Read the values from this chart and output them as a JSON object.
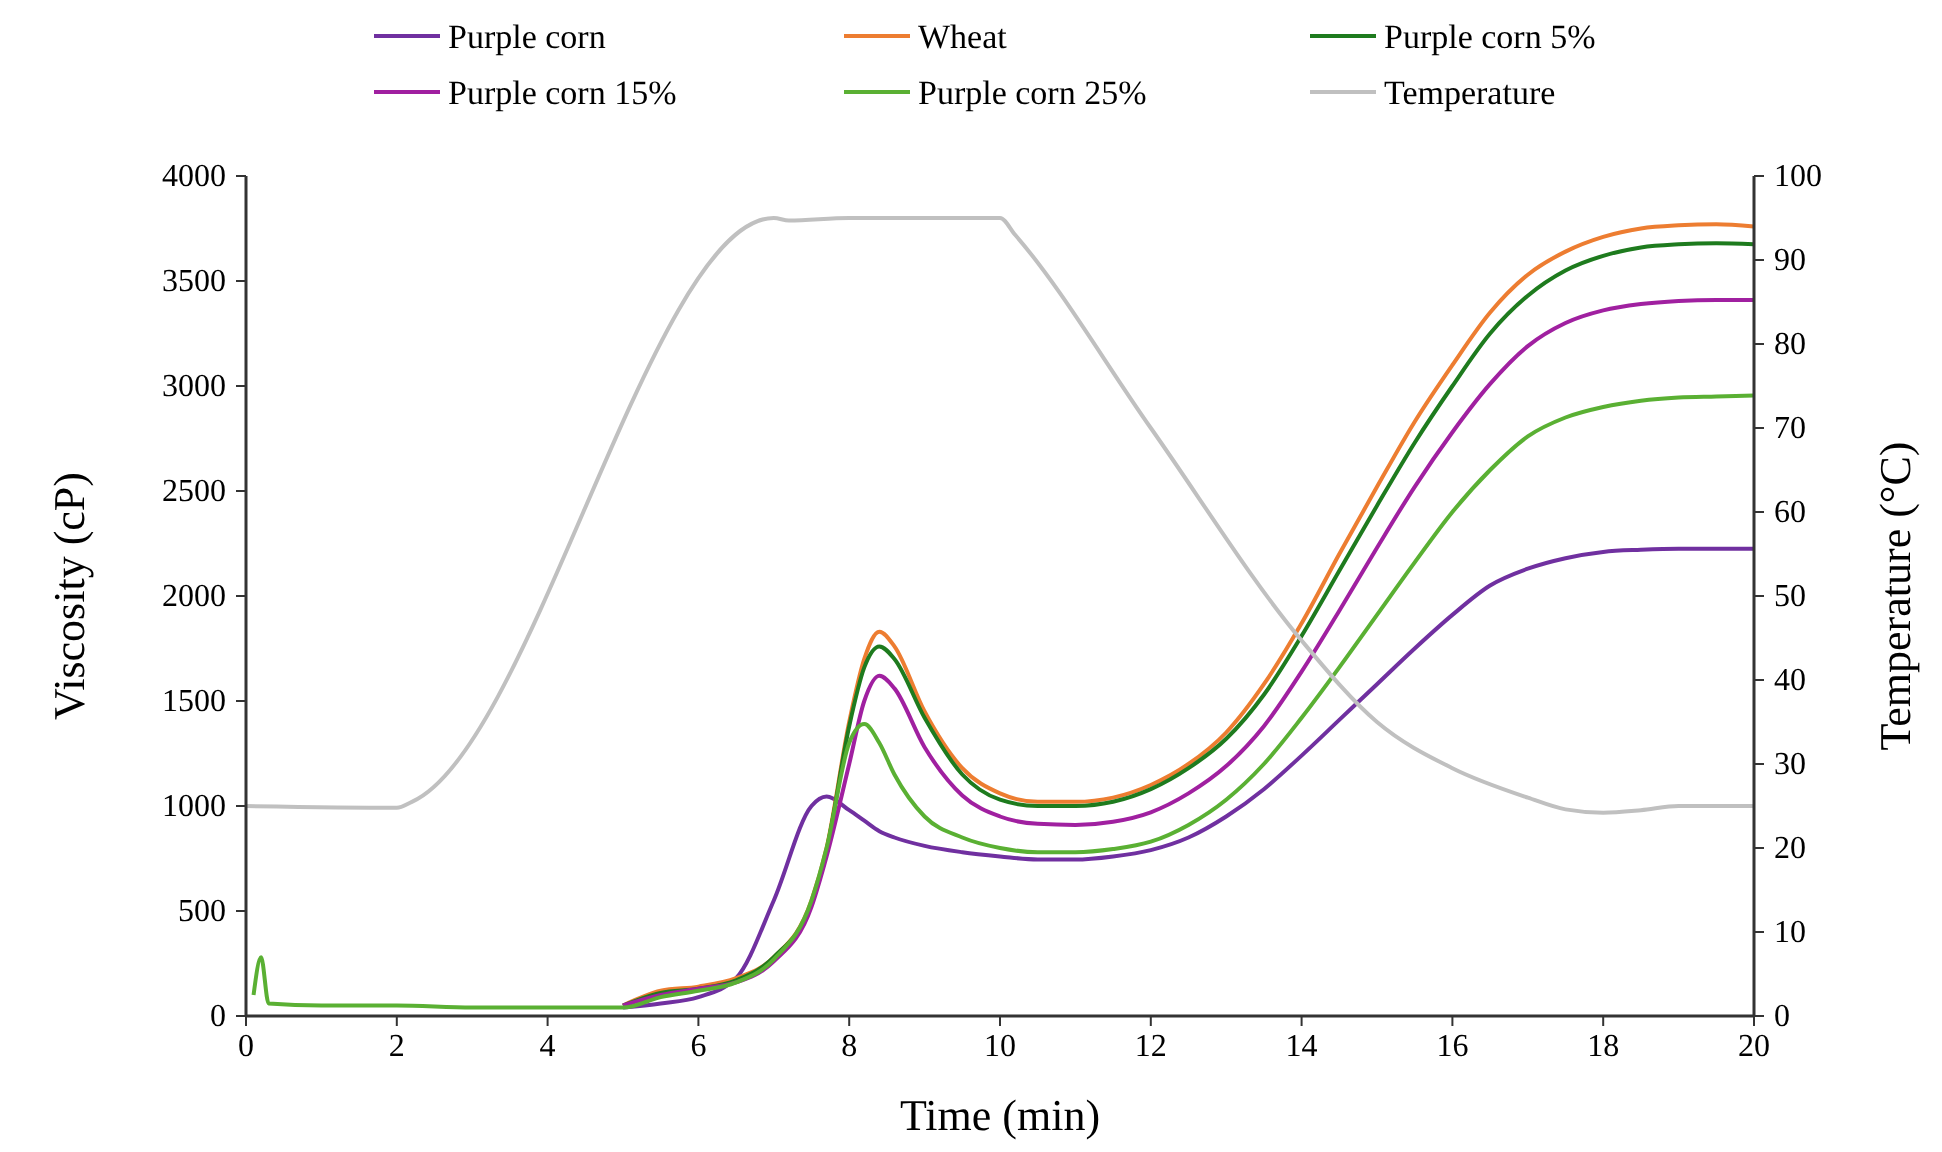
{
  "chart_data": {
    "type": "line",
    "xlabel": "Time (min)",
    "ylabel": "Viscosity (cP)",
    "y2label": "Temperature (°C)",
    "xlim": [
      0,
      20
    ],
    "xticks": [
      0,
      2,
      4,
      6,
      8,
      10,
      12,
      14,
      16,
      18,
      20
    ],
    "ylim": [
      0,
      4000
    ],
    "yticks": [
      0,
      500,
      1000,
      1500,
      2000,
      2500,
      3000,
      3500,
      4000
    ],
    "y2lim": [
      0,
      100
    ],
    "y2ticks": [
      0,
      10,
      20,
      30,
      40,
      50,
      60,
      70,
      80,
      90,
      100
    ],
    "legend": "top",
    "grid": false,
    "marker": "none",
    "line_style": "solid",
    "x": [
      0.1,
      0.2,
      0.3,
      1,
      2,
      3,
      4,
      5,
      5.5,
      6,
      6.5,
      7,
      7.5,
      7.7,
      8,
      8.2,
      8.4,
      8.6,
      9,
      9.5,
      10,
      10.5,
      11,
      11.5,
      12,
      12.5,
      13,
      13.5,
      14,
      14.5,
      15,
      15.5,
      16,
      16.5,
      17,
      17.5,
      18,
      18.5,
      19,
      19.5,
      20
    ],
    "series": [
      {
        "name": "Purple corn",
        "color": "#7030a0",
        "values": [
          null,
          null,
          null,
          null,
          null,
          null,
          null,
          40,
          60,
          90,
          180,
          550,
          1000,
          1045,
          980,
          930,
          880,
          850,
          810,
          780,
          760,
          745,
          745,
          760,
          790,
          850,
          950,
          1080,
          1240,
          1410,
          1580,
          1750,
          1910,
          2050,
          2130,
          2180,
          2210,
          2220,
          2225,
          2225,
          2225
        ]
      },
      {
        "name": "Wheat",
        "color": "#ed7d31",
        "values": [
          null,
          null,
          null,
          null,
          null,
          null,
          null,
          50,
          120,
          140,
          180,
          280,
          550,
          800,
          1400,
          1700,
          1830,
          1760,
          1450,
          1180,
          1060,
          1020,
          1020,
          1040,
          1100,
          1200,
          1350,
          1580,
          1870,
          2200,
          2520,
          2830,
          3100,
          3350,
          3530,
          3640,
          3710,
          3750,
          3765,
          3770,
          3760
        ]
      },
      {
        "name": "Purple corn 5%",
        "color": "#1e7b1e",
        "values": [
          null,
          null,
          null,
          null,
          null,
          null,
          null,
          50,
          110,
          130,
          170,
          280,
          540,
          790,
          1380,
          1660,
          1760,
          1700,
          1420,
          1150,
          1030,
          1000,
          1000,
          1020,
          1080,
          1180,
          1320,
          1530,
          1810,
          2120,
          2430,
          2730,
          3000,
          3250,
          3430,
          3550,
          3620,
          3660,
          3675,
          3680,
          3675
        ]
      },
      {
        "name": "Purple corn 15%",
        "color": "#a020a0",
        "values": [
          null,
          null,
          null,
          null,
          null,
          null,
          null,
          50,
          100,
          130,
          160,
          260,
          520,
          760,
          1200,
          1500,
          1620,
          1560,
          1280,
          1050,
          950,
          915,
          910,
          925,
          970,
          1060,
          1190,
          1380,
          1640,
          1930,
          2230,
          2520,
          2780,
          3010,
          3190,
          3300,
          3360,
          3390,
          3405,
          3410,
          3410
        ]
      },
      {
        "name": "Purple corn 25%",
        "color": "#5ab033",
        "values": [
          100,
          280,
          60,
          50,
          50,
          40,
          40,
          40,
          90,
          120,
          160,
          270,
          550,
          800,
          1300,
          1390,
          1300,
          1150,
          950,
          850,
          800,
          780,
          780,
          795,
          830,
          910,
          1030,
          1200,
          1420,
          1660,
          1910,
          2160,
          2400,
          2600,
          2760,
          2850,
          2900,
          2930,
          2945,
          2950,
          2955
        ]
      },
      {
        "name": "Temperature",
        "color": "#c0c0c0",
        "axis": "y2",
        "x": [
          0,
          2,
          2.2,
          7,
          7.2,
          8,
          10,
          10.2,
          12,
          14,
          15,
          16,
          17,
          17.5,
          18,
          18.5,
          19,
          20
        ],
        "values": [
          25,
          24.8,
          25.5,
          95,
          94.7,
          95,
          95,
          93,
          70,
          44.7,
          35,
          29.5,
          26,
          24.6,
          24.2,
          24.5,
          25,
          25
        ]
      }
    ]
  }
}
